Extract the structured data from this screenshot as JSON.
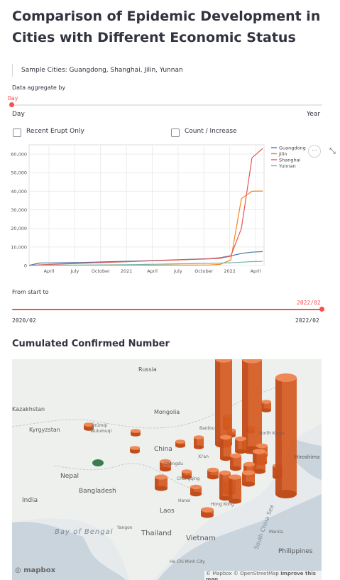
{
  "page": {
    "title": "Comparison of Epidemic Development in Cities with Different Economic Status",
    "subtitle": "Sample Cities: Guangdong, Shanghai, Jilin, Yunnan"
  },
  "aggregate": {
    "label": "Data aggregate by",
    "value": "Day",
    "min_label": "Day",
    "max_label": "Year",
    "level": 0
  },
  "options": {
    "recent_erupt": "Recent Erupt Only",
    "count_increase": "Count / Increase"
  },
  "range": {
    "label": "From start to",
    "value": "2022/02",
    "min_label": "2020/02",
    "max_label": "2022/02",
    "level": 1.0
  },
  "chart_data": {
    "type": "line",
    "x_ticks": [
      "April",
      "July",
      "October",
      "2021",
      "April",
      "July",
      "October",
      "2022",
      "April"
    ],
    "y_ticks": [
      "0",
      "10,000",
      "20,000",
      "30,000",
      "40,000",
      "50,000",
      "60,000"
    ],
    "ylim": [
      0,
      65000
    ],
    "grid": true,
    "legend_position": "top-right",
    "series": [
      {
        "name": "Guangdong",
        "color": "#4c78a8",
        "values": [
          100,
          1350,
          1400,
          1480,
          1550,
          1650,
          1800,
          1950,
          2100,
          2250,
          2400,
          2550,
          2700,
          2900,
          3100,
          3300,
          3500,
          3700,
          4200,
          5200,
          6500,
          7200,
          7500
        ]
      },
      {
        "name": "Jilin",
        "color": "#f58518",
        "values": [
          0,
          150,
          160,
          165,
          170,
          175,
          180,
          185,
          190,
          195,
          200,
          205,
          210,
          220,
          230,
          240,
          250,
          300,
          600,
          3000,
          36000,
          40000,
          40100
        ]
      },
      {
        "name": "Shanghai",
        "color": "#e45756",
        "values": [
          0,
          400,
          600,
          800,
          1000,
          1200,
          1400,
          1600,
          1800,
          2000,
          2200,
          2400,
          2600,
          2800,
          3000,
          3200,
          3400,
          3600,
          3900,
          5000,
          20000,
          58000,
          63000
        ]
      },
      {
        "name": "Yunnan",
        "color": "#72b7b2",
        "values": [
          0,
          190,
          200,
          210,
          230,
          260,
          300,
          350,
          400,
          450,
          500,
          600,
          700,
          800,
          900,
          1000,
          1100,
          1200,
          1300,
          1500,
          1800,
          2100,
          2200
        ]
      }
    ]
  },
  "map": {
    "title": "Cumulated Confirmed Number",
    "places": [
      "Russia",
      "Kazakhstan",
      "Mongolia",
      "Kyrgyzstan",
      "China",
      "Nepal",
      "Bangladesh",
      "India",
      "Laos",
      "Thailand",
      "Vietnam",
      "Philippines",
      "Bay of Bengal",
      "South China Sea",
      "Hiroshima"
    ],
    "cities": [
      "Ürümqi",
      "Wulumuqi",
      "Baotou",
      "Xi'an",
      "Chengdu",
      "Chongqing",
      "Hanoi",
      "Hong Kong",
      "Yangon",
      "Ho Chi Minh City",
      "Manila",
      "North Korea"
    ],
    "attribution": "© Mapbox © OpenStreetMap",
    "improve": "Improve this map",
    "logo": "mapbox",
    "bar_color": "#d9531e",
    "low_color": "#3b7d4f"
  }
}
